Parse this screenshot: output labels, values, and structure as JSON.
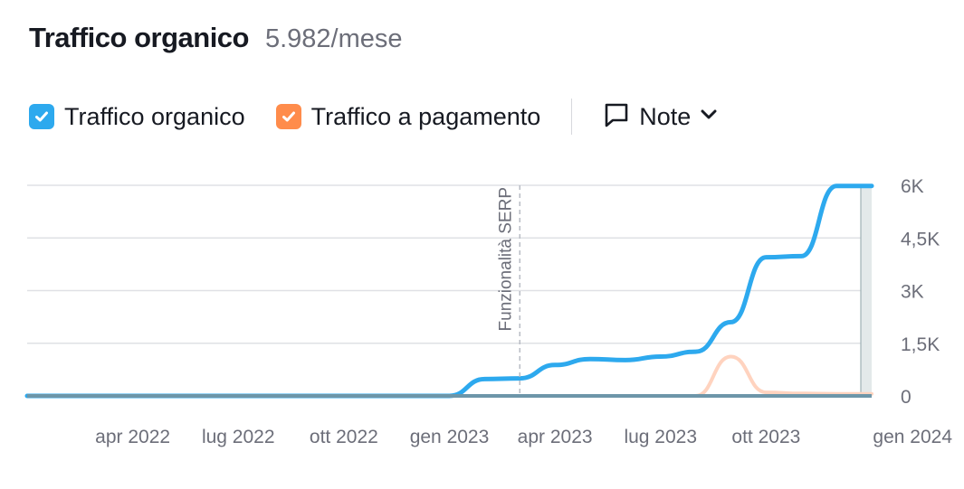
{
  "header": {
    "title": "Traffico organico",
    "summary": "5.982/mese"
  },
  "legend": {
    "organic": {
      "label": "Traffico organico",
      "color": "#2da9ee",
      "checked": true
    },
    "paid": {
      "label": "Traffico a pagamento",
      "color": "#ff8c4b",
      "checked": true
    },
    "notes": {
      "label": "Note",
      "icon": "comment-icon"
    }
  },
  "chart_data": {
    "type": "line",
    "title": "",
    "xlabel": "",
    "ylabel": "",
    "x": [
      "2022-01",
      "2022-02",
      "2022-03",
      "2022-04",
      "2022-05",
      "2022-06",
      "2022-07",
      "2022-08",
      "2022-09",
      "2022-10",
      "2022-11",
      "2022-12",
      "2023-01",
      "2023-02",
      "2023-03",
      "2023-04",
      "2023-05",
      "2023-06",
      "2023-07",
      "2023-08",
      "2023-09",
      "2023-10",
      "2023-11",
      "2023-12",
      "2024-01"
    ],
    "xlim": [
      "2022-01",
      "2024-01"
    ],
    "x_ticks": [
      {
        "date": "2022-04",
        "label": "apr 2022"
      },
      {
        "date": "2022-07",
        "label": "lug 2022"
      },
      {
        "date": "2022-10",
        "label": "ott 2022"
      },
      {
        "date": "2023-01",
        "label": "gen 2023"
      },
      {
        "date": "2023-04",
        "label": "apr 2023"
      },
      {
        "date": "2023-07",
        "label": "lug 2023"
      },
      {
        "date": "2023-10",
        "label": "ott 2023"
      },
      {
        "date": "2024-01",
        "label": "gen 2024"
      }
    ],
    "ylim": [
      0,
      6000
    ],
    "y_ticks": [
      {
        "value": 0,
        "label": "0"
      },
      {
        "value": 1500,
        "label": "1,5K"
      },
      {
        "value": 3000,
        "label": "3K"
      },
      {
        "value": 4500,
        "label": "4,5K"
      },
      {
        "value": 6000,
        "label": "6K"
      }
    ],
    "y_axis_side": "right",
    "grid": true,
    "series": [
      {
        "name": "Traffico organico",
        "color": "#2da9ee",
        "values": [
          0,
          0,
          0,
          0,
          0,
          0,
          0,
          0,
          0,
          0,
          0,
          0,
          0,
          480,
          500,
          880,
          1050,
          1020,
          1120,
          1260,
          2100,
          3950,
          3980,
          5982,
          5982
        ]
      },
      {
        "name": "Traffico a pagamento",
        "color": "#ffd3bf",
        "values": [
          0,
          0,
          0,
          0,
          0,
          0,
          0,
          0,
          0,
          0,
          0,
          0,
          0,
          0,
          0,
          0,
          0,
          0,
          0,
          0,
          1120,
          100,
          70,
          60,
          60
        ]
      }
    ],
    "annotations": [
      {
        "date": "2023-03",
        "label": "Funzionalità SERP",
        "style": "dashed-vertical-line"
      }
    ]
  }
}
